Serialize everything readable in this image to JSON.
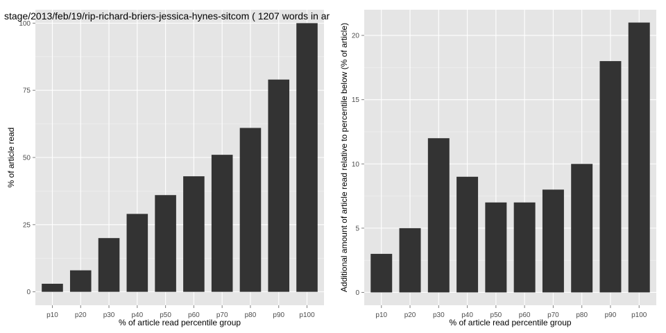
{
  "chart_data": [
    {
      "type": "bar",
      "title": "stage/2013/feb/19/rip-richard-briers-jessica-hynes-sitcom ( 1207 words in ar",
      "xlabel": "% of article read percentile group",
      "ylabel": "% of article read",
      "categories": [
        "p10",
        "p20",
        "p30",
        "p40",
        "p50",
        "p60",
        "p70",
        "p80",
        "p90",
        "p100"
      ],
      "values": [
        3,
        8,
        20,
        29,
        36,
        43,
        51,
        61,
        79,
        100
      ],
      "ylim": [
        -5,
        105
      ],
      "yticks": [
        0,
        25,
        50,
        75,
        100
      ],
      "ytick_labels": [
        "0",
        "25",
        "50",
        "75",
        "100"
      ],
      "grid": true,
      "bar_color": "#333333",
      "panel_color": "#e5e5e5"
    },
    {
      "type": "bar",
      "title": "",
      "xlabel": "% of article read percentile group",
      "ylabel": "Additional amount of article read relative to percentile below (% of article)",
      "categories": [
        "p10",
        "p20",
        "p30",
        "p40",
        "p50",
        "p60",
        "p70",
        "p80",
        "p90",
        "p100"
      ],
      "values": [
        3,
        5,
        12,
        9,
        7,
        7,
        8,
        10,
        18,
        21
      ],
      "ylim": [
        -1,
        22
      ],
      "yticks": [
        0,
        5,
        10,
        15,
        20
      ],
      "ytick_labels": [
        "0",
        "5",
        "10",
        "15",
        "20"
      ],
      "grid": true,
      "bar_color": "#333333",
      "panel_color": "#e5e5e5"
    }
  ]
}
